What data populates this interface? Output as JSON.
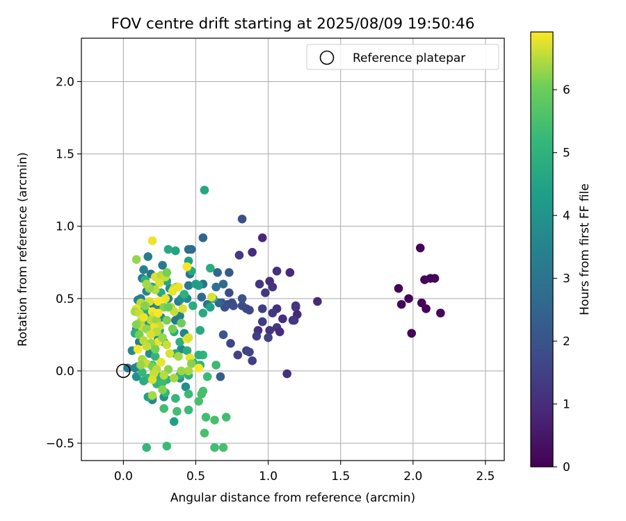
{
  "chart_data": {
    "type": "scatter",
    "title": "FOV centre drift starting at 2025/08/09 19:50:46",
    "xlabel": "Angular distance from reference (arcmin)",
    "ylabel": "Rotation from reference (arcmin)",
    "xlim": [
      -0.29,
      2.63
    ],
    "ylim": [
      -0.62,
      2.3
    ],
    "xticks": [
      0.0,
      0.5,
      1.0,
      1.5,
      2.0,
      2.5
    ],
    "xtick_labels": [
      "0.0",
      "0.5",
      "1.0",
      "1.5",
      "2.0",
      "2.5"
    ],
    "yticks": [
      -0.5,
      0.0,
      0.5,
      1.0,
      1.5,
      2.0
    ],
    "ytick_labels": [
      "−0.5",
      "0.0",
      "0.5",
      "1.0",
      "1.5",
      "2.0"
    ],
    "grid": true,
    "legend": {
      "placement": "upper-right",
      "entries": [
        "Reference platepar"
      ]
    },
    "reference_point": {
      "x": 0.0,
      "y": 0.0,
      "label": "Reference platepar"
    },
    "colorbar": {
      "label": "Hours from first FF file",
      "colormap": "viridis",
      "range": [
        0,
        6.92
      ],
      "ticks": [
        0,
        1,
        2,
        3,
        4,
        5,
        6
      ],
      "tick_labels": [
        "0",
        "1",
        "2",
        "3",
        "4",
        "5",
        "6"
      ]
    },
    "points": [
      [
        2.05,
        0.85,
        0.05
      ],
      [
        2.12,
        0.64,
        0.08
      ],
      [
        2.15,
        0.64,
        0.1
      ],
      [
        2.08,
        0.63,
        0.12
      ],
      [
        1.9,
        0.57,
        0.06
      ],
      [
        1.97,
        0.5,
        0.09
      ],
      [
        2.06,
        0.47,
        0.07
      ],
      [
        1.92,
        0.46,
        0.11
      ],
      [
        2.09,
        0.43,
        0.04
      ],
      [
        2.19,
        0.4,
        0.13
      ],
      [
        1.99,
        0.26,
        0.1
      ],
      [
        0.96,
        0.92,
        0.9
      ],
      [
        0.89,
        0.82,
        1.0
      ],
      [
        0.8,
        0.8,
        1.3
      ],
      [
        1.15,
        0.68,
        0.95
      ],
      [
        1.06,
        0.69,
        1.1
      ],
      [
        1.01,
        0.62,
        1.05
      ],
      [
        0.94,
        0.6,
        1.2
      ],
      [
        1.03,
        0.58,
        1.15
      ],
      [
        0.98,
        0.54,
        1.25
      ],
      [
        1.34,
        0.48,
        0.9
      ],
      [
        1.19,
        0.45,
        1.0
      ],
      [
        1.19,
        0.44,
        1.2
      ],
      [
        0.96,
        0.43,
        1.4
      ],
      [
        1.06,
        0.43,
        1.1
      ],
      [
        1.03,
        0.4,
        1.3
      ],
      [
        1.2,
        0.39,
        0.95
      ],
      [
        1.1,
        0.36,
        1.05
      ],
      [
        1.17,
        0.35,
        1.15
      ],
      [
        1.18,
        0.35,
        1.25
      ],
      [
        0.96,
        0.34,
        1.35
      ],
      [
        1.01,
        0.28,
        1.2
      ],
      [
        0.93,
        0.28,
        1.1
      ],
      [
        1.06,
        0.3,
        1.3
      ],
      [
        1.08,
        0.27,
        1.0
      ],
      [
        0.92,
        0.24,
        1.45
      ],
      [
        1.0,
        0.23,
        1.5
      ],
      [
        0.74,
        0.19,
        1.6
      ],
      [
        0.79,
        0.11,
        1.5
      ],
      [
        0.89,
        0.07,
        1.4
      ],
      [
        0.85,
        0.14,
        1.5
      ],
      [
        0.87,
        0.13,
        1.6
      ],
      [
        1.13,
        -0.02,
        1.1
      ],
      [
        0.82,
        1.05,
        1.9
      ],
      [
        0.72,
        0.46,
        1.7
      ],
      [
        0.75,
        0.47,
        1.8
      ],
      [
        0.85,
        0.43,
        1.6
      ],
      [
        0.82,
        0.45,
        1.75
      ],
      [
        0.87,
        0.42,
        1.65
      ],
      [
        0.76,
        0.45,
        1.85
      ],
      [
        0.7,
        0.44,
        1.9
      ],
      [
        0.73,
        0.54,
        1.8
      ],
      [
        0.82,
        0.5,
        1.95
      ],
      [
        0.68,
        0.47,
        2.0
      ],
      [
        0.73,
        0.68,
        2.2
      ],
      [
        0.67,
        -0.04,
        2.3
      ],
      [
        0.69,
        0.25,
        2.1
      ],
      [
        0.55,
        0.92,
        2.5
      ],
      [
        0.54,
        0.51,
        2.6
      ],
      [
        0.47,
        0.84,
        2.7
      ],
      [
        0.45,
        0.84,
        2.8
      ],
      [
        0.64,
        0.58,
        2.9
      ],
      [
        0.65,
        0.68,
        2.6
      ],
      [
        0.66,
        0.47,
        2.5
      ],
      [
        0.69,
        0.6,
        2.7
      ],
      [
        0.55,
        0.6,
        3.0
      ],
      [
        0.58,
        0.46,
        3.1
      ],
      [
        0.45,
        0.59,
        3.2
      ],
      [
        0.46,
        0.67,
        2.8
      ],
      [
        0.38,
        0.48,
        3.3
      ],
      [
        0.39,
        0.38,
        3.4
      ],
      [
        0.42,
        0.26,
        3.5
      ],
      [
        0.36,
        0.35,
        3.1
      ],
      [
        0.27,
        0.73,
        3.2
      ],
      [
        0.17,
        0.79,
        3.3
      ],
      [
        0.14,
        0.7,
        3.4
      ],
      [
        0.19,
        0.67,
        3.0
      ],
      [
        0.13,
        0.64,
        3.2
      ],
      [
        0.16,
        0.55,
        3.5
      ],
      [
        0.1,
        0.49,
        3.6
      ],
      [
        0.12,
        0.5,
        3.3
      ],
      [
        0.09,
        0.29,
        3.5
      ],
      [
        0.11,
        0.2,
        3.4
      ],
      [
        0.06,
        0.14,
        3.7
      ],
      [
        0.1,
        0.03,
        3.8
      ],
      [
        0.03,
        0.02,
        3.2
      ],
      [
        0.08,
        0.02,
        3.5
      ],
      [
        0.09,
        -0.04,
        3.9
      ],
      [
        0.2,
        -0.2,
        3.6
      ],
      [
        0.2,
        -0.19,
        3.7
      ],
      [
        0.43,
        -0.11,
        3.8
      ],
      [
        0.39,
        -0.05,
        3.9
      ],
      [
        0.4,
        0.15,
        3.6
      ],
      [
        0.44,
        0.5,
        3.7
      ],
      [
        0.4,
        0.5,
        3.8
      ],
      [
        0.32,
        0.57,
        3.9
      ],
      [
        0.31,
        0.5,
        3.4
      ],
      [
        0.21,
        0.45,
        3.5
      ],
      [
        0.23,
        0.44,
        3.6
      ],
      [
        0.26,
        0.37,
        3.7
      ],
      [
        0.18,
        0.33,
        3.8
      ],
      [
        0.14,
        0.33,
        3.9
      ],
      [
        0.24,
        0.22,
        3.7
      ],
      [
        0.18,
        0.12,
        3.8
      ],
      [
        0.28,
        -0.18,
        4.0
      ],
      [
        0.56,
        1.25,
        4.6
      ],
      [
        0.36,
        0.83,
        4.5
      ],
      [
        0.31,
        0.84,
        4.7
      ],
      [
        0.44,
        0.72,
        4.2
      ],
      [
        0.6,
        0.71,
        4.8
      ],
      [
        0.45,
        0.76,
        4.4
      ],
      [
        0.47,
        0.69,
        4.6
      ],
      [
        0.52,
        0.59,
        4.4
      ],
      [
        0.5,
        0.6,
        4.3
      ],
      [
        0.6,
        0.44,
        4.5
      ],
      [
        0.62,
        0.5,
        4.6
      ],
      [
        0.55,
        0.4,
        4.7
      ],
      [
        0.53,
        0.28,
        4.7
      ],
      [
        0.48,
        0.45,
        4.8
      ],
      [
        0.42,
        0.53,
        4.9
      ],
      [
        0.37,
        0.58,
        4.5
      ],
      [
        0.3,
        0.62,
        4.6
      ],
      [
        0.26,
        0.54,
        4.7
      ],
      [
        0.2,
        0.58,
        4.8
      ],
      [
        0.15,
        0.63,
        4.9
      ],
      [
        0.17,
        0.4,
        4.6
      ],
      [
        0.13,
        0.42,
        4.7
      ],
      [
        0.08,
        0.26,
        4.8
      ],
      [
        0.12,
        0.34,
        4.9
      ],
      [
        0.17,
        0.29,
        4.5
      ],
      [
        0.25,
        0.28,
        4.6
      ],
      [
        0.28,
        0.2,
        4.7
      ],
      [
        0.35,
        0.27,
        4.8
      ],
      [
        0.39,
        0.2,
        4.9
      ],
      [
        0.36,
        0.12,
        4.6
      ],
      [
        0.44,
        0.14,
        4.8
      ],
      [
        0.48,
        0.06,
        4.9
      ],
      [
        0.53,
        0.04,
        5.0
      ],
      [
        0.55,
        0.11,
        5.1
      ],
      [
        0.52,
        0.11,
        4.9
      ],
      [
        0.45,
        -0.03,
        5.0
      ],
      [
        0.39,
        -0.03,
        5.1
      ],
      [
        0.3,
        -0.06,
        5.0
      ],
      [
        0.25,
        -0.04,
        4.9
      ],
      [
        0.23,
        -0.09,
        5.1
      ],
      [
        0.29,
        -0.15,
        5.2
      ],
      [
        0.36,
        -0.19,
        5.2
      ],
      [
        0.27,
        -0.08,
        5.3
      ],
      [
        0.17,
        -0.05,
        5.1
      ],
      [
        0.13,
        -0.01,
        5.2
      ],
      [
        0.2,
        0.04,
        5.0
      ],
      [
        0.22,
        0.1,
        5.1
      ],
      [
        0.64,
        0.04,
        5.3
      ],
      [
        0.58,
        -0.04,
        5.3
      ],
      [
        0.54,
        -0.16,
        5.4
      ],
      [
        0.45,
        -0.16,
        5.3
      ],
      [
        0.45,
        -0.27,
        5.3
      ],
      [
        0.37,
        -0.28,
        5.4
      ],
      [
        0.28,
        -0.26,
        5.4
      ],
      [
        0.52,
        -0.21,
        5.5
      ],
      [
        0.55,
        -0.14,
        5.5
      ],
      [
        0.57,
        -0.32,
        5.4
      ],
      [
        0.63,
        -0.34,
        5.5
      ],
      [
        0.71,
        -0.32,
        5.4
      ],
      [
        0.56,
        -0.43,
        5.5
      ],
      [
        0.63,
        -0.53,
        5.4
      ],
      [
        0.69,
        -0.53,
        5.5
      ],
      [
        0.3,
        -0.52,
        5.3
      ],
      [
        0.16,
        -0.53,
        5.2
      ],
      [
        0.35,
        -0.35,
        4.4
      ],
      [
        0.17,
        -0.18,
        4.5
      ],
      [
        0.14,
        -0.07,
        4.8
      ],
      [
        0.2,
        0.9,
        6.8
      ],
      [
        0.09,
        0.77,
        6.3
      ],
      [
        0.22,
        0.65,
        6.7
      ],
      [
        0.26,
        0.66,
        6.5
      ],
      [
        0.29,
        0.65,
        6.6
      ],
      [
        0.3,
        0.68,
        6.1
      ],
      [
        0.35,
        0.57,
        6.6
      ],
      [
        0.38,
        0.58,
        6.8
      ],
      [
        0.44,
        0.72,
        6.9
      ],
      [
        0.25,
        0.61,
        6.7
      ],
      [
        0.22,
        0.56,
        6.5
      ],
      [
        0.18,
        0.57,
        6.3
      ],
      [
        0.16,
        0.6,
        6.4
      ],
      [
        0.29,
        0.5,
        6.8
      ],
      [
        0.24,
        0.48,
        6.9
      ],
      [
        0.28,
        0.44,
        6.2
      ],
      [
        0.33,
        0.44,
        6.5
      ],
      [
        0.35,
        0.41,
        6.6
      ],
      [
        0.41,
        0.43,
        6.7
      ],
      [
        0.18,
        0.48,
        6.7
      ],
      [
        0.12,
        0.47,
        6.5
      ],
      [
        0.15,
        0.45,
        6.2
      ],
      [
        0.09,
        0.43,
        6.8
      ],
      [
        0.08,
        0.41,
        6.4
      ],
      [
        0.11,
        0.4,
        6.6
      ],
      [
        0.2,
        0.41,
        6.9
      ],
      [
        0.21,
        0.38,
        6.7
      ],
      [
        0.19,
        0.35,
        6.5
      ],
      [
        0.23,
        0.35,
        6.3
      ],
      [
        0.3,
        0.35,
        6.1
      ],
      [
        0.25,
        0.31,
        6.6
      ],
      [
        0.12,
        0.34,
        6.4
      ],
      [
        0.13,
        0.3,
        6.6
      ],
      [
        0.21,
        0.3,
        6.8
      ],
      [
        0.09,
        0.32,
        6.2
      ],
      [
        0.16,
        0.29,
        6.3
      ],
      [
        0.23,
        0.27,
        6.5
      ],
      [
        0.34,
        0.29,
        6.1
      ],
      [
        0.19,
        0.25,
        6.7
      ],
      [
        0.11,
        0.25,
        6.1
      ],
      [
        0.24,
        0.2,
        6.8
      ],
      [
        0.27,
        0.23,
        6.3
      ],
      [
        0.3,
        0.18,
        6.6
      ],
      [
        0.44,
        0.22,
        6.9
      ],
      [
        0.45,
        0.23,
        6.7
      ],
      [
        0.14,
        0.21,
        6.5
      ],
      [
        0.19,
        0.19,
        6.3
      ],
      [
        0.16,
        0.17,
        6.6
      ],
      [
        0.1,
        0.15,
        6.9
      ],
      [
        0.22,
        0.15,
        6.1
      ],
      [
        0.32,
        0.12,
        6.7
      ],
      [
        0.38,
        0.1,
        6.4
      ],
      [
        0.46,
        0.09,
        6.8
      ],
      [
        0.47,
        0.05,
        6.2
      ],
      [
        0.13,
        0.08,
        6.4
      ],
      [
        0.16,
        0.05,
        6.6
      ],
      [
        0.26,
        0.06,
        6.8
      ],
      [
        0.12,
        0.04,
        6.3
      ],
      [
        0.2,
        0.03,
        6.1
      ],
      [
        0.23,
        0.01,
        6.5
      ],
      [
        0.31,
        0.01,
        6.2
      ],
      [
        0.4,
        0.0,
        6.3
      ],
      [
        0.45,
        0.0,
        6.4
      ],
      [
        0.52,
        0.02,
        6.9
      ],
      [
        0.21,
        -0.02,
        6.6
      ],
      [
        0.28,
        -0.03,
        6.5
      ],
      [
        0.35,
        -0.05,
        6.4
      ],
      [
        0.2,
        -0.06,
        6.7
      ],
      [
        0.27,
        -0.13,
        6.2
      ],
      [
        0.2,
        -0.17,
        6.4
      ],
      [
        0.61,
        0.51,
        6.7
      ],
      [
        0.34,
        0.55,
        6.8
      ],
      [
        0.24,
        0.4,
        6.9
      ],
      [
        0.14,
        0.37,
        6.8
      ],
      [
        0.4,
        0.33,
        6.0
      ],
      [
        0.31,
        0.44,
        6.0
      ]
    ]
  }
}
